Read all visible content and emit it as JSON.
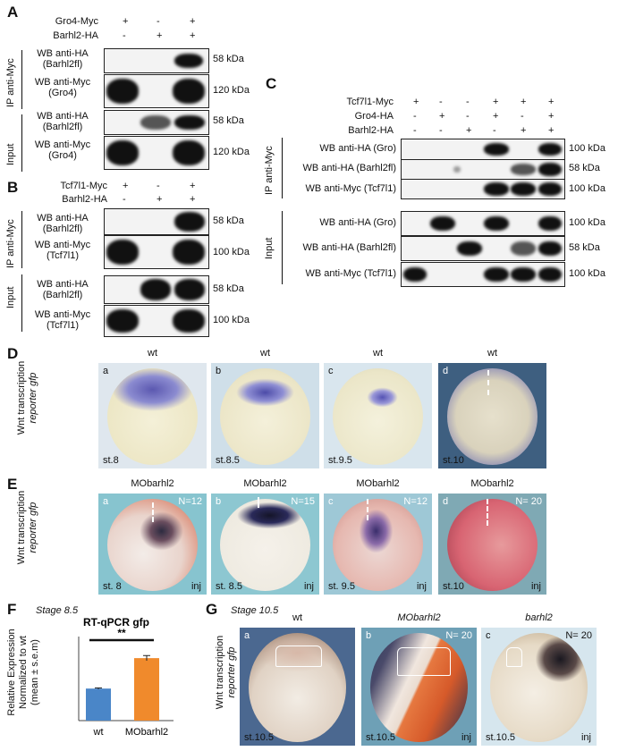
{
  "panelA": {
    "letter": "A",
    "row1": {
      "label": "Gro4-Myc",
      "signs": [
        "+",
        "-",
        "+"
      ]
    },
    "row2": {
      "label": "Barhl2-HA",
      "signs": [
        "-",
        "+",
        "+"
      ]
    },
    "ip_label": "IP anti-Myc",
    "input_label": "Input",
    "blots": [
      {
        "label1": "WB anti-HA",
        "label2": "(Barhl2fl)",
        "kda": "58 kDa"
      },
      {
        "label1": "WB anti-Myc",
        "label2": "(Gro4)",
        "kda": "120 kDa"
      },
      {
        "label1": "WB anti-HA",
        "label2": "(Barhl2fl)",
        "kda": "58 kDa"
      },
      {
        "label1": "WB anti-Myc",
        "label2": "(Gro4)",
        "kda": "120 kDa"
      }
    ]
  },
  "panelB": {
    "letter": "B",
    "row1": {
      "label": "Tcf7l1-Myc",
      "signs": [
        "+",
        "-",
        "+"
      ]
    },
    "row2": {
      "label": "Barhl2-HA",
      "signs": [
        "-",
        "+",
        "+"
      ]
    },
    "ip_label": "IP anti-Myc",
    "input_label": "Input",
    "blots": [
      {
        "label1": "WB anti-HA",
        "label2": "(Barhl2fl)",
        "kda": "58 kDa"
      },
      {
        "label1": "WB anti-Myc",
        "label2": "(Tcf7l1)",
        "kda": "100 kDa"
      },
      {
        "label1": "WB anti-HA",
        "label2": "(Barhl2fl)",
        "kda": "58 kDa"
      },
      {
        "label1": "WB anti-Myc",
        "label2": "(Tcf7l1)",
        "kda": "100 kDa"
      }
    ]
  },
  "panelC": {
    "letter": "C",
    "rows": [
      {
        "label": "Tcf7l1-Myc",
        "signs": [
          "+",
          "-",
          "-",
          "+",
          "+",
          "+"
        ]
      },
      {
        "label": "Gro4-HA",
        "signs": [
          "-",
          "+",
          "-",
          "+",
          "-",
          "+"
        ]
      },
      {
        "label": "Barhl2-HA",
        "signs": [
          "-",
          "-",
          "+",
          "-",
          "+",
          "+"
        ]
      }
    ],
    "ip_label": "IP anti-Myc",
    "input_label": "Input",
    "blots": [
      {
        "label": "WB anti-HA (Gro)",
        "kda": "100 kDa"
      },
      {
        "label": "WB anti-HA (Barhl2fl)",
        "kda": "58 kDa"
      },
      {
        "label": "WB anti-Myc (Tcf7l1)",
        "kda": "100 kDa"
      },
      {
        "label": "WB anti-HA (Gro)",
        "kda": "100 kDa"
      },
      {
        "label": "WB anti-HA (Barhl2fl)",
        "kda": "58 kDa"
      },
      {
        "label": "WB anti-Myc (Tcf7l1)",
        "kda": "100 kDa"
      }
    ]
  },
  "panelD": {
    "letter": "D",
    "side_label1": "Wnt transcription",
    "side_label2": "reporter gfp",
    "images": [
      {
        "title": "wt",
        "sub": "a",
        "stage": "st.8"
      },
      {
        "title": "wt",
        "sub": "b",
        "stage": "st.8.5"
      },
      {
        "title": "wt",
        "sub": "c",
        "stage": "st.9.5"
      },
      {
        "title": "wt",
        "sub": "d",
        "stage": "st.10"
      }
    ]
  },
  "panelE": {
    "letter": "E",
    "side_label1": "Wnt transcription",
    "side_label2": "reporter gfp",
    "images": [
      {
        "title": "MObarhl2",
        "sub": "a",
        "n": "N=12",
        "stage": "st. 8",
        "inj": "inj"
      },
      {
        "title": "MObarhl2",
        "sub": "b",
        "n": "N=15",
        "stage": "st. 8.5",
        "inj": "inj"
      },
      {
        "title": "MObarhl2",
        "sub": "c",
        "n": "N=12",
        "stage": "st. 9.5",
        "inj": "inj"
      },
      {
        "title": "MObarhl2",
        "sub": "d",
        "n": "N= 20",
        "stage": "st.10",
        "inj": "inj"
      }
    ]
  },
  "panelF": {
    "letter": "F",
    "stage": "Stage 8.5",
    "ylabel1": "Relative  Expression",
    "ylabel2": "Normalized to wt",
    "ylabel3": "(mean ± s.e.m)",
    "significance": "**",
    "colors": {
      "wt": "#4a86c8",
      "mo": "#f08a2c"
    },
    "chart_data": {
      "type": "bar",
      "title": "RT-qPCR gfp",
      "categories": [
        "wt",
        "MObarhl2"
      ],
      "values": [
        1.0,
        1.95
      ],
      "errors": [
        0.02,
        0.08
      ],
      "ylim": [
        0,
        2.4
      ]
    }
  },
  "panelG": {
    "letter": "G",
    "stage": "Stage 10.5",
    "side_label1": "Wnt transcription",
    "side_label2": "reporter gfp",
    "images": [
      {
        "title": "wt",
        "sub": "a",
        "n": "",
        "stage": "st.10.5",
        "inj": ""
      },
      {
        "title": "MObarhl2",
        "sub": "b",
        "n": "N= 20",
        "stage": "st.10.5",
        "inj": "inj"
      },
      {
        "title": "barhl2",
        "sub": "c",
        "n": "N= 20",
        "stage": "st.10.5",
        "inj": "inj"
      }
    ]
  }
}
